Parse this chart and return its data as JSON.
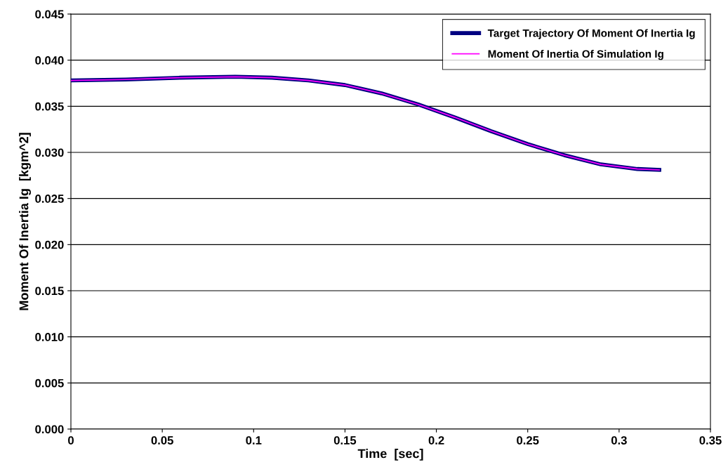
{
  "chart_data": {
    "type": "line",
    "xlabel": "Time  [sec]",
    "ylabel": "Moment Of Inertia Ig  [kgm^2]",
    "x": [
      0,
      0.03,
      0.06,
      0.09,
      0.11,
      0.13,
      0.15,
      0.17,
      0.19,
      0.21,
      0.23,
      0.25,
      0.27,
      0.29,
      0.31,
      0.322
    ],
    "series": [
      {
        "name": "Target Trajectory Of Moment Of Inertia Ig",
        "color": "#000080",
        "values": [
          0.0378,
          0.0379,
          0.0381,
          0.0382,
          0.0381,
          0.0378,
          0.0373,
          0.0364,
          0.0352,
          0.0338,
          0.0323,
          0.0309,
          0.0297,
          0.0287,
          0.0282,
          0.0281
        ]
      },
      {
        "name": "Moment Of Inertia Of Simulation Ig",
        "color": "#ff00ff",
        "values": [
          0.0378,
          0.0379,
          0.0381,
          0.0382,
          0.0381,
          0.0378,
          0.0373,
          0.0364,
          0.0352,
          0.0338,
          0.0323,
          0.0309,
          0.0297,
          0.0287,
          0.0282,
          0.0281
        ]
      }
    ],
    "xlim": [
      0,
      0.35
    ],
    "xticks": [
      0,
      0.05,
      0.1,
      0.15,
      0.2,
      0.25,
      0.3,
      0.35
    ],
    "ylim": [
      0,
      0.045
    ],
    "yticks": [
      {
        "value": 0,
        "label": "0.000"
      },
      {
        "value": 0.005,
        "label": "0.005"
      },
      {
        "value": 0.01,
        "label": "0.010"
      },
      {
        "value": 0.015,
        "label": "0.015"
      },
      {
        "value": 0.02,
        "label": "0.020"
      },
      {
        "value": 0.025,
        "label": "0.025"
      },
      {
        "value": 0.03,
        "label": "0.030"
      },
      {
        "value": 0.035,
        "label": "0.035"
      },
      {
        "value": 0.04,
        "label": "0.040"
      },
      {
        "value": 0.045,
        "label": "0.045"
      }
    ],
    "grid": "y",
    "legend": "top right",
    "marker": "none",
    "line_style": "solid"
  }
}
